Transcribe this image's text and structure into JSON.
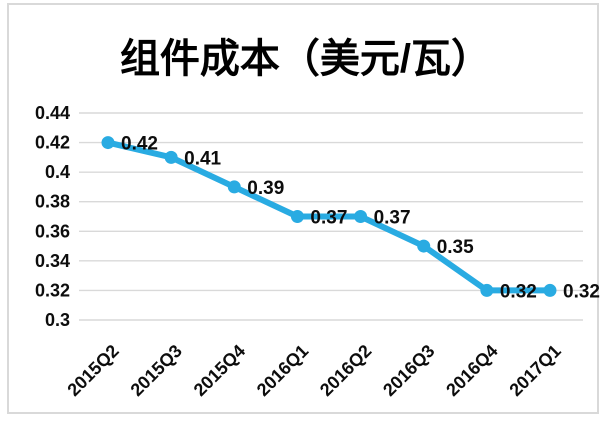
{
  "page": {
    "title": "组件成本（美元/瓦）"
  },
  "colors": {
    "line": "#29abe2",
    "marker": "#29abe2",
    "grid": "#d9d9d9",
    "text": "#0d0d0d",
    "frame_border": "#d9d9d9",
    "background": "#ffffff"
  },
  "chart_data": {
    "type": "line",
    "title": "组件成本（美元/瓦）",
    "categories": [
      "2015Q2",
      "2015Q3",
      "2015Q4",
      "2016Q1",
      "2016Q2",
      "2016Q3",
      "2016Q4",
      "2017Q1"
    ],
    "series": [
      {
        "name": "组件成本",
        "values": [
          0.42,
          0.41,
          0.39,
          0.37,
          0.37,
          0.35,
          0.32,
          0.32
        ]
      }
    ],
    "data_labels": [
      "0.42",
      "0.41",
      "0.39",
      "0.37",
      "0.37",
      "0.35",
      "0.32",
      "0.32"
    ],
    "y_ticks": [
      0.3,
      0.32,
      0.34,
      0.36,
      0.38,
      0.4,
      0.42,
      0.44
    ],
    "y_tick_labels": [
      "0.3",
      "0.32",
      "0.34",
      "0.36",
      "0.38",
      "0.4",
      "0.42",
      "0.44"
    ],
    "ylim": [
      0.3,
      0.44
    ],
    "xlabel": "",
    "ylabel": "",
    "grid": "horizontal",
    "legend": "none",
    "marker": "circle",
    "x_label_rotation": -45
  }
}
